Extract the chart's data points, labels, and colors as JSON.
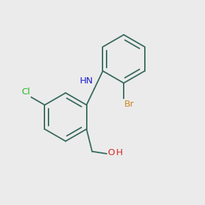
{
  "background_color": "#ebebeb",
  "bond_color": "#3a6b60",
  "N_color": "#1a1acc",
  "Cl_color": "#22bb22",
  "Br_color": "#cc8822",
  "O_color": "#dd2222",
  "label_NH": "HN",
  "label_Cl": "Cl",
  "label_Br": "Br",
  "label_O": "O",
  "label_H_on_O": "H",
  "figsize": [
    3.0,
    3.0
  ],
  "dpi": 100,
  "lw": 1.4
}
